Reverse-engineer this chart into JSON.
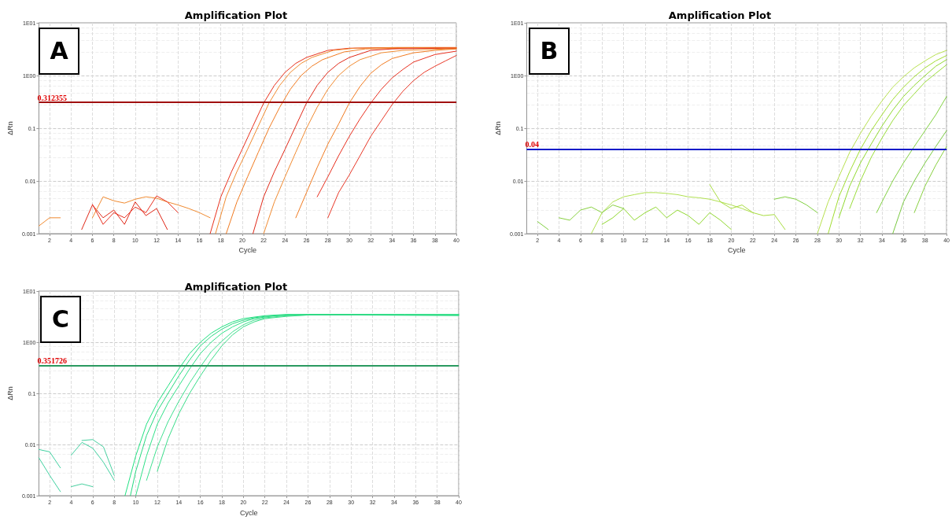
{
  "chart_data": [
    {
      "type": "line",
      "title": "Amplification Plot",
      "xlabel": "Cycle",
      "ylabel": "ΔRn",
      "log": "y",
      "grid": true,
      "marker": "none",
      "line_style": "solid",
      "annotations": [
        "A"
      ],
      "xlim": [
        1,
        40
      ],
      "xticks": [
        2,
        4,
        6,
        8,
        10,
        12,
        14,
        16,
        18,
        20,
        22,
        24,
        26,
        28,
        30,
        32,
        34,
        36,
        38,
        40
      ],
      "ylim": [
        0.001,
        10
      ],
      "yticks": [
        {
          "value": 0.001,
          "label": "0.001"
        },
        {
          "value": 0.01,
          "label": "0.01"
        },
        {
          "value": 0.1,
          "label": "0.1"
        },
        {
          "value": 1,
          "label": "1E00"
        },
        {
          "value": 10,
          "label": "1E01"
        }
      ],
      "ref_lines": [
        {
          "axis": "y",
          "value": 0.312355,
          "label": "0.312355",
          "color": "#a01010"
        }
      ],
      "series": [
        {
          "color": "#e8301c",
          "x": [
            17,
            18,
            19,
            20,
            21,
            22,
            23,
            24,
            25,
            26,
            28,
            30,
            34,
            40
          ],
          "values": [
            0.001,
            0.005,
            0.015,
            0.04,
            0.11,
            0.3,
            0.65,
            1.15,
            1.7,
            2.2,
            3.0,
            3.3,
            3.4,
            3.4
          ]
        },
        {
          "color": "#f08a30",
          "x": [
            17.5,
            18.5,
            19.5,
            20.5,
            21.5,
            22.5,
            23.5,
            24.5,
            25.5,
            26.5,
            28.5,
            30.5,
            34.5,
            40
          ],
          "values": [
            0.001,
            0.005,
            0.015,
            0.04,
            0.11,
            0.3,
            0.65,
            1.15,
            1.7,
            2.2,
            3.0,
            3.3,
            3.4,
            3.4
          ]
        },
        {
          "color": "#f07a20",
          "x": [
            18.5,
            19.5,
            20.5,
            21.5,
            22.5,
            23.5,
            24.5,
            25.5,
            26.5,
            27.5,
            29.5,
            31.5,
            35.5,
            40
          ],
          "values": [
            0.001,
            0.004,
            0.012,
            0.035,
            0.1,
            0.25,
            0.55,
            1.0,
            1.5,
            2.0,
            2.8,
            3.2,
            3.3,
            3.3
          ]
        },
        {
          "color": "#e02818",
          "x": [
            21,
            22,
            23,
            24,
            25,
            26,
            27,
            28,
            29,
            30,
            32,
            34,
            38,
            40
          ],
          "values": [
            0.001,
            0.005,
            0.015,
            0.04,
            0.11,
            0.3,
            0.65,
            1.15,
            1.7,
            2.2,
            3.0,
            3.2,
            3.3,
            3.3
          ]
        },
        {
          "color": "#f08a30",
          "x": [
            22,
            23,
            24,
            25,
            26,
            27,
            28,
            29,
            30,
            31,
            33,
            35,
            39,
            40
          ],
          "values": [
            0.001,
            0.004,
            0.012,
            0.035,
            0.1,
            0.25,
            0.55,
            1.0,
            1.5,
            2.0,
            2.7,
            3.0,
            3.2,
            3.2
          ]
        },
        {
          "color": "#f07a20",
          "x": [
            25,
            26,
            27,
            28,
            29,
            30,
            31,
            32,
            33,
            34,
            36,
            38,
            40
          ],
          "values": [
            0.002,
            0.006,
            0.018,
            0.05,
            0.12,
            0.3,
            0.62,
            1.1,
            1.6,
            2.1,
            2.7,
            3.0,
            3.2
          ]
        },
        {
          "color": "#e83020",
          "x": [
            27,
            28,
            29,
            30,
            31,
            32,
            33,
            34,
            35,
            36,
            38,
            40
          ],
          "values": [
            0.005,
            0.012,
            0.03,
            0.07,
            0.15,
            0.3,
            0.55,
            0.9,
            1.3,
            1.8,
            2.5,
            2.9
          ]
        },
        {
          "color": "#e83828",
          "x": [
            28,
            29,
            30,
            31,
            32,
            33,
            34,
            35,
            36,
            37,
            38,
            39,
            40
          ],
          "values": [
            0.002,
            0.006,
            0.013,
            0.03,
            0.07,
            0.14,
            0.28,
            0.5,
            0.8,
            1.15,
            1.5,
            1.9,
            2.4
          ]
        },
        {
          "color": "#e02818",
          "x": [
            5,
            6,
            7,
            8,
            9,
            10,
            11,
            12,
            13
          ],
          "values": [
            0.0012,
            0.0035,
            0.002,
            0.0028,
            0.0015,
            0.004,
            0.0022,
            0.003,
            0.0012
          ]
        },
        {
          "color": "#f08a30",
          "x": [
            6,
            7,
            8,
            9,
            10,
            11,
            12,
            13,
            14,
            15,
            16,
            17
          ],
          "values": [
            0.002,
            0.005,
            0.0042,
            0.0038,
            0.0045,
            0.005,
            0.0047,
            0.004,
            0.0035,
            0.003,
            0.0025,
            0.002
          ]
        },
        {
          "color": "#e83020",
          "x": [
            6,
            7,
            8,
            9,
            10,
            11,
            12,
            13,
            14
          ],
          "values": [
            0.0036,
            0.0015,
            0.0025,
            0.002,
            0.0032,
            0.0025,
            0.0052,
            0.004,
            0.0025
          ]
        },
        {
          "color": "#f08a30",
          "x": [
            1,
            2,
            3
          ],
          "values": [
            0.0014,
            0.002,
            0.002
          ]
        }
      ]
    },
    {
      "type": "line",
      "title": "Amplification Plot",
      "xlabel": "Cycle",
      "ylabel": "ΔRn",
      "log": "y",
      "grid": true,
      "marker": "none",
      "line_style": "solid",
      "annotations": [
        "B"
      ],
      "xlim": [
        1,
        40
      ],
      "xticks": [
        2,
        4,
        6,
        8,
        10,
        12,
        14,
        16,
        18,
        20,
        22,
        24,
        26,
        28,
        30,
        32,
        34,
        36,
        38,
        40
      ],
      "ylim": [
        0.001,
        10
      ],
      "yticks": [
        {
          "value": 0.001,
          "label": "0.001"
        },
        {
          "value": 0.01,
          "label": "0.01"
        },
        {
          "value": 0.1,
          "label": "0.1"
        },
        {
          "value": 1,
          "label": "1E00"
        },
        {
          "value": 10,
          "label": "1E01"
        }
      ],
      "ref_lines": [
        {
          "axis": "y",
          "value": 0.04,
          "label": "0.04",
          "color": "#0a1ac8"
        }
      ],
      "series": [
        {
          "color": "#b8e050",
          "x": [
            28,
            29,
            30,
            31,
            32,
            33,
            34,
            35,
            36,
            37,
            38,
            39,
            40
          ],
          "values": [
            0.001,
            0.004,
            0.012,
            0.035,
            0.08,
            0.17,
            0.33,
            0.6,
            0.95,
            1.4,
            1.9,
            2.5,
            3.0
          ]
        },
        {
          "color": "#a0dc30",
          "x": [
            29,
            30,
            31,
            32,
            33,
            34,
            35,
            36,
            37,
            38,
            39,
            40
          ],
          "values": [
            0.001,
            0.005,
            0.015,
            0.04,
            0.09,
            0.18,
            0.35,
            0.6,
            0.95,
            1.4,
            1.9,
            2.4
          ]
        },
        {
          "color": "#90d830",
          "x": [
            30,
            31,
            32,
            33,
            34,
            35,
            36,
            37,
            38,
            39,
            40
          ],
          "values": [
            0.002,
            0.008,
            0.022,
            0.05,
            0.11,
            0.22,
            0.4,
            0.65,
            1.0,
            1.5,
            2.0
          ]
        },
        {
          "color": "#98dc38",
          "x": [
            31,
            32,
            33,
            34,
            35,
            36,
            37,
            38,
            39,
            40
          ],
          "values": [
            0.003,
            0.01,
            0.028,
            0.065,
            0.14,
            0.27,
            0.45,
            0.75,
            1.1,
            1.6
          ]
        },
        {
          "color": "#80d040",
          "x": [
            33.5,
            34,
            35,
            36,
            37,
            38,
            39,
            40
          ],
          "values": [
            0.0025,
            0.004,
            0.01,
            0.022,
            0.045,
            0.09,
            0.18,
            0.4
          ]
        },
        {
          "color": "#78c840",
          "x": [
            35,
            36,
            37,
            38,
            39,
            40
          ],
          "values": [
            0.001,
            0.004,
            0.01,
            0.022,
            0.045,
            0.09
          ]
        },
        {
          "color": "#88d040",
          "x": [
            37,
            38,
            39,
            40
          ],
          "values": [
            0.0025,
            0.008,
            0.02,
            0.045
          ]
        },
        {
          "color": "#b0e050",
          "x": [
            7,
            8,
            9,
            10,
            11,
            12,
            13,
            14,
            15,
            16,
            17,
            18,
            19,
            20,
            21,
            22
          ],
          "values": [
            0.001,
            0.0025,
            0.004,
            0.005,
            0.0055,
            0.006,
            0.006,
            0.0058,
            0.0055,
            0.005,
            0.0048,
            0.0045,
            0.004,
            0.0035,
            0.003,
            0.0025
          ]
        },
        {
          "color": "#90d830",
          "x": [
            8,
            9,
            10,
            11,
            12,
            13,
            14,
            15,
            16,
            17,
            18,
            19,
            20
          ],
          "values": [
            0.0015,
            0.002,
            0.003,
            0.0018,
            0.0025,
            0.0032,
            0.002,
            0.0028,
            0.0022,
            0.0015,
            0.0025,
            0.0018,
            0.0012
          ]
        },
        {
          "color": "#80d040",
          "x": [
            2,
            3
          ],
          "values": [
            0.0017,
            0.0012
          ]
        },
        {
          "color": "#88d040",
          "x": [
            4,
            5,
            6,
            7,
            8,
            9,
            10
          ],
          "values": [
            0.002,
            0.0018,
            0.0028,
            0.0032,
            0.0025,
            0.0035,
            0.003
          ]
        },
        {
          "color": "#a8dc40",
          "x": [
            18,
            19,
            20,
            21,
            22,
            23,
            24,
            25
          ],
          "values": [
            0.0085,
            0.004,
            0.003,
            0.0035,
            0.0025,
            0.0022,
            0.0023,
            0.0012
          ]
        },
        {
          "color": "#80d040",
          "x": [
            24,
            25,
            26,
            27,
            28
          ],
          "values": [
            0.0045,
            0.005,
            0.0045,
            0.0035,
            0.0025
          ]
        }
      ]
    },
    {
      "type": "line",
      "title": "Amplification Plot",
      "xlabel": "Cycle",
      "ylabel": "ΔRn",
      "log": "y",
      "grid": true,
      "marker": "none",
      "line_style": "solid",
      "annotations": [
        "C"
      ],
      "xlim": [
        1,
        40
      ],
      "xticks": [
        2,
        4,
        6,
        8,
        10,
        12,
        14,
        16,
        18,
        20,
        22,
        24,
        26,
        28,
        30,
        32,
        34,
        36,
        38,
        40
      ],
      "ylim": [
        0.001,
        10
      ],
      "yticks": [
        {
          "value": 0.001,
          "label": "0.001"
        },
        {
          "value": 0.01,
          "label": "0.01"
        },
        {
          "value": 0.1,
          "label": "0.1"
        },
        {
          "value": 1,
          "label": "1E00"
        },
        {
          "value": 10,
          "label": "1E01"
        }
      ],
      "ref_lines": [
        {
          "axis": "y",
          "value": 0.351726,
          "label": "0.351726",
          "color": "#2a9a60"
        }
      ],
      "series": [
        {
          "color": "#20e080",
          "x": [
            9,
            10,
            11,
            12,
            13,
            14,
            15,
            16,
            17,
            18,
            19,
            20,
            21,
            22,
            24,
            26,
            30,
            35,
            40
          ],
          "values": [
            0.001,
            0.006,
            0.025,
            0.065,
            0.14,
            0.3,
            0.6,
            1.0,
            1.5,
            2.0,
            2.5,
            2.9,
            3.1,
            3.3,
            3.5,
            3.5,
            3.5,
            3.5,
            3.5
          ]
        },
        {
          "color": "#30e088",
          "x": [
            10,
            11,
            12,
            13,
            14,
            15,
            16,
            17,
            18,
            19,
            20,
            21,
            22,
            23,
            25,
            27,
            31,
            36,
            40
          ],
          "values": [
            0.001,
            0.006,
            0.025,
            0.065,
            0.14,
            0.3,
            0.6,
            1.0,
            1.5,
            2.0,
            2.5,
            2.9,
            3.1,
            3.3,
            3.4,
            3.4,
            3.4,
            3.4,
            3.4
          ]
        },
        {
          "color": "#28d880",
          "x": [
            9.5,
            10,
            11,
            12,
            13,
            14,
            15,
            16,
            17,
            18,
            19,
            20,
            21,
            22,
            24,
            26,
            30,
            40
          ],
          "values": [
            0.001,
            0.003,
            0.015,
            0.045,
            0.1,
            0.22,
            0.45,
            0.85,
            1.3,
            1.8,
            2.3,
            2.7,
            3.0,
            3.2,
            3.4,
            3.5,
            3.5,
            3.4
          ]
        },
        {
          "color": "#40e090",
          "x": [
            11,
            12,
            13,
            14,
            15,
            16,
            17,
            18,
            19,
            20,
            21,
            22,
            24,
            26,
            30,
            40
          ],
          "values": [
            0.002,
            0.009,
            0.028,
            0.07,
            0.16,
            0.33,
            0.65,
            1.05,
            1.6,
            2.2,
            2.7,
            3.0,
            3.3,
            3.4,
            3.4,
            3.3
          ]
        },
        {
          "color": "#38dc88",
          "x": [
            12,
            13,
            14,
            15,
            16,
            17,
            18,
            19,
            20,
            21,
            22,
            24,
            26,
            30,
            40
          ],
          "values": [
            0.003,
            0.013,
            0.04,
            0.1,
            0.22,
            0.45,
            0.85,
            1.4,
            2.0,
            2.5,
            2.9,
            3.2,
            3.4,
            3.4,
            3.4
          ]
        },
        {
          "color": "#40d0a0",
          "x": [
            1,
            2,
            3
          ],
          "values": [
            0.008,
            0.0072,
            0.0035
          ]
        },
        {
          "color": "#40d0a0",
          "x": [
            4,
            5,
            6,
            7,
            8
          ],
          "values": [
            0.0062,
            0.011,
            0.0085,
            0.0045,
            0.002
          ]
        },
        {
          "color": "#48d0a0",
          "x": [
            5,
            6,
            7,
            8
          ],
          "values": [
            0.012,
            0.0125,
            0.009,
            0.0025
          ]
        },
        {
          "color": "#40d0a0",
          "x": [
            1,
            2,
            3
          ],
          "values": [
            0.0055,
            0.0025,
            0.0012
          ]
        },
        {
          "color": "#48d0a0",
          "x": [
            4,
            5,
            6
          ],
          "values": [
            0.0015,
            0.0017,
            0.0015
          ]
        }
      ]
    }
  ]
}
